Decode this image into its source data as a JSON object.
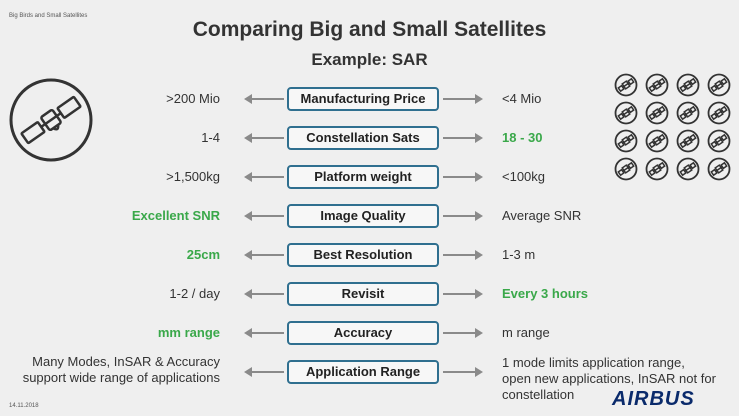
{
  "header": {
    "small_title": "Big Birds and Small Satellites"
  },
  "slide": {
    "title": "Comparing Big and Small Satellites",
    "subtitle": "Example: SAR"
  },
  "rows": [
    {
      "left": ">200 Mio",
      "center": "Manufacturing Price",
      "right": "<4 Mio"
    },
    {
      "left": "1-4",
      "center": "Constellation Sats",
      "right": "18 - 30"
    },
    {
      "left": ">1,500kg",
      "center": "Platform weight",
      "right": "<100kg"
    },
    {
      "left": "Excellent SNR",
      "center": "Image Quality",
      "right": "Average SNR"
    },
    {
      "left": "25cm",
      "center": "Best Resolution",
      "right": "1-3 m"
    },
    {
      "left": "1-2 / day",
      "center": "Revisit",
      "right": "Every 3 hours"
    },
    {
      "left": "mm range",
      "center": "Accuracy",
      "right": "m range"
    },
    {
      "left_line1": "Many Modes, InSAR & Accuracy",
      "left_line2": "support wide range of applications",
      "center": "Application Range",
      "right_line1": "1 mode limits application range,",
      "right_line2": "open new applications, InSAR not for",
      "right_line3": "constellation"
    }
  ],
  "footer": {
    "date": "14.11.2018",
    "logo": "AIRBUS"
  },
  "colors": {
    "accent_green": "#3aa84a",
    "box_border": "#2f6f8f",
    "arrow": "#8a8a8a"
  },
  "icons": {
    "big": "large-satellite-icon",
    "small_grid": "small-satellite-icon",
    "small_count": 16
  }
}
